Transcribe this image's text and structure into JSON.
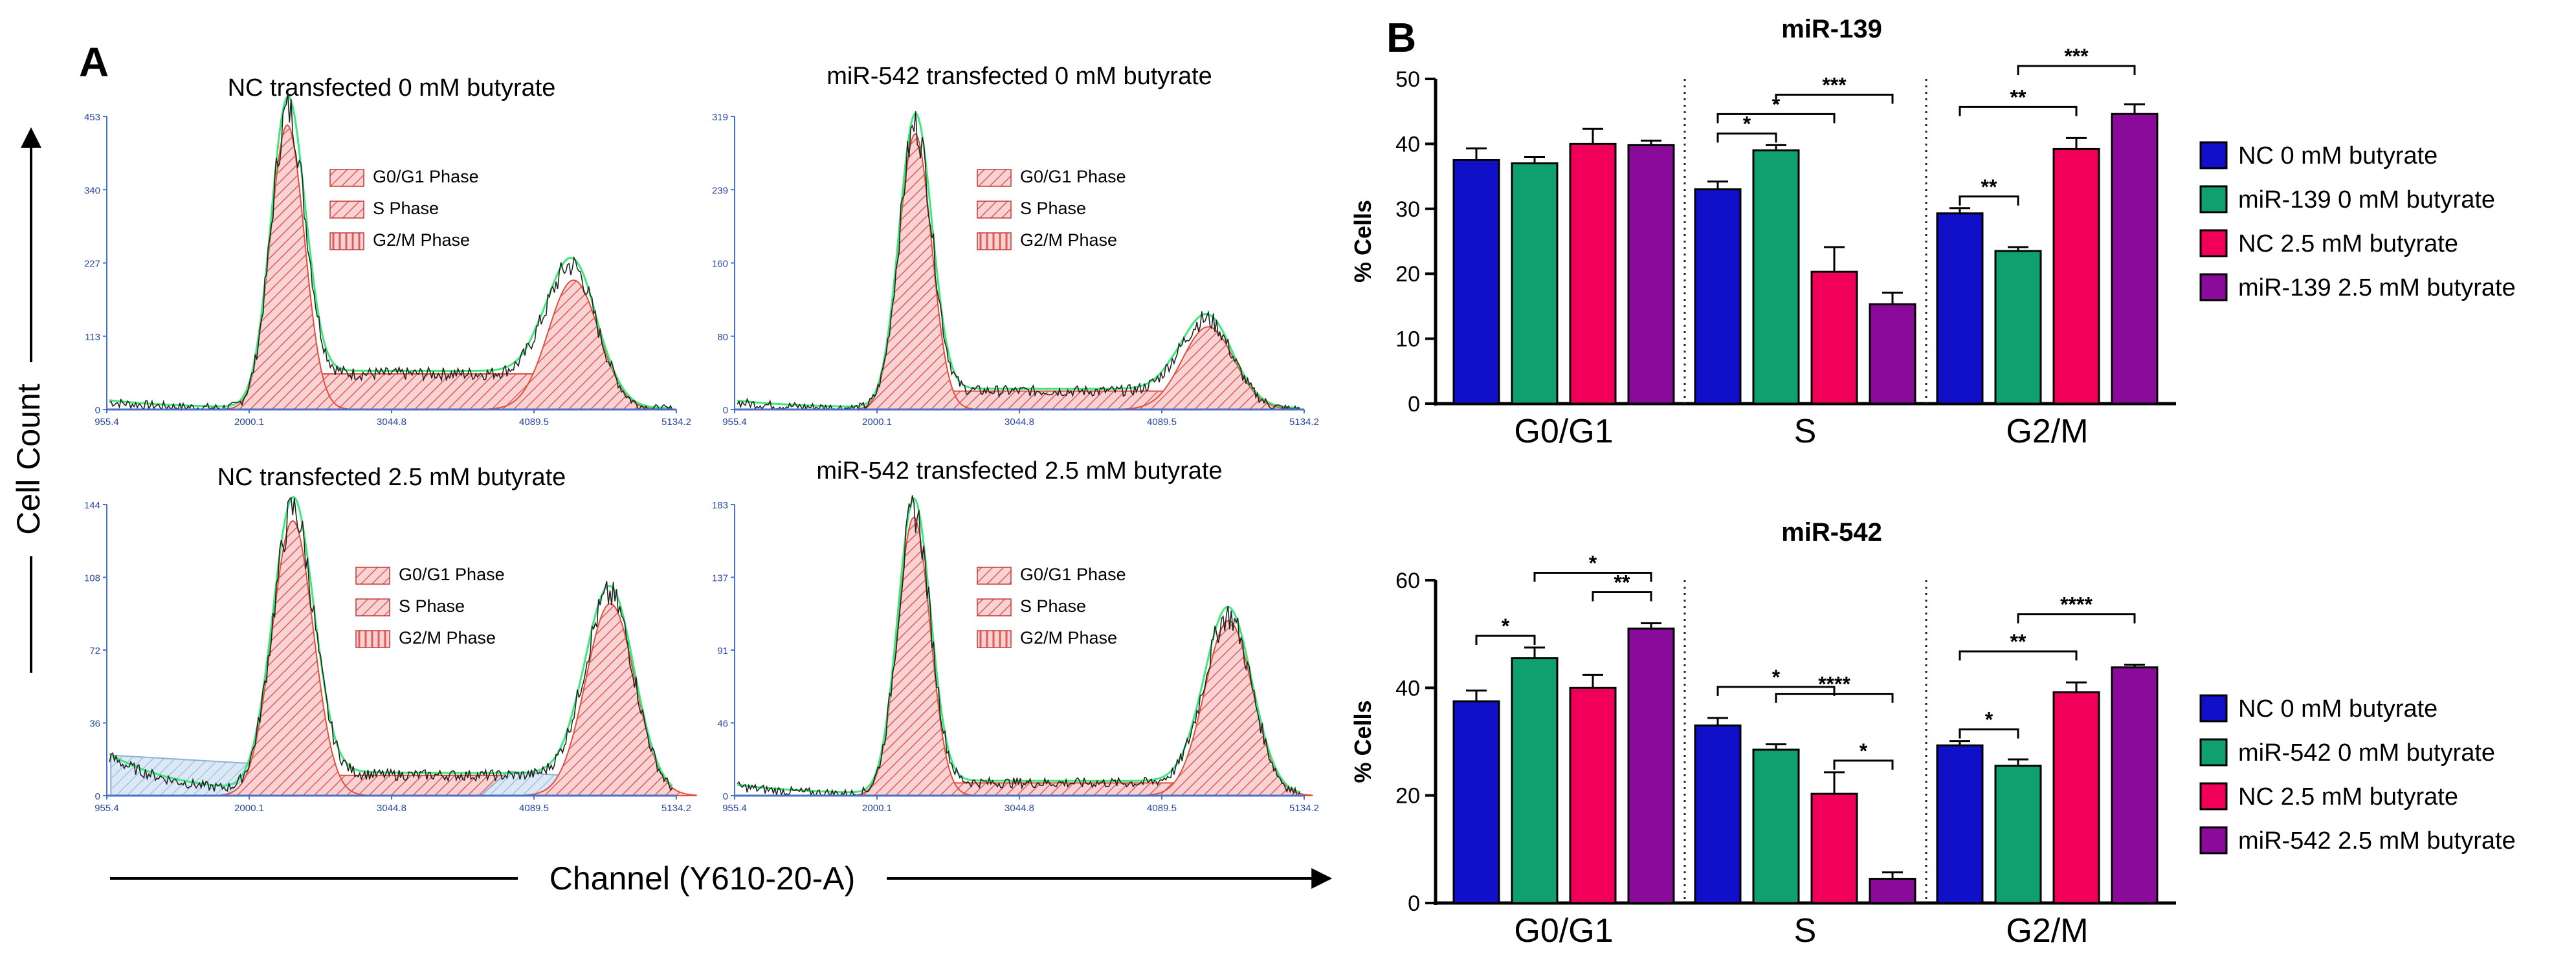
{
  "panel_a": {
    "letter": "A",
    "ylabel": "Cell Count",
    "xlabel": "Channel (Y610-20-A)",
    "x_ticks": [
      "955.4",
      "2000.1",
      "3044.8",
      "4089.5",
      "5134.2"
    ],
    "legend": [
      "G0/G1 Phase",
      "S Phase",
      "G2/M Phase"
    ],
    "histograms": [
      {
        "title": "NC transfected 0 mM butyrate",
        "y_ticks": [
          "0",
          "113",
          "227",
          "340",
          "453"
        ],
        "ymax": 453,
        "g1_mean": 2280,
        "g1_sd": 125,
        "g1_peak": 440,
        "g2_mean": 4380,
        "g2_sd": 185,
        "g2_peak": 200,
        "s_level": 55,
        "debris": 12
      },
      {
        "title": "miR-542 transfected 0 mM butyrate",
        "y_ticks": [
          "0",
          "80",
          "160",
          "239",
          "319"
        ],
        "ymax": 319,
        "g1_mean": 2280,
        "g1_sd": 120,
        "g1_peak": 300,
        "g2_mean": 4430,
        "g2_sd": 190,
        "g2_peak": 90,
        "s_level": 20,
        "debris": 8
      },
      {
        "title": "NC transfected 2.5 mM butyrate",
        "y_ticks": [
          "0",
          "36",
          "72",
          "108",
          "144"
        ],
        "ymax": 144,
        "g1_mean": 2320,
        "g1_sd": 150,
        "g1_peak": 136,
        "g2_mean": 4650,
        "g2_sd": 180,
        "g2_peak": 95,
        "s_level": 10,
        "debris": 20
      },
      {
        "title": "miR-542 transfected 2.5 mM butyrate",
        "y_ticks": [
          "0",
          "46",
          "91",
          "137",
          "183"
        ],
        "ymax": 183,
        "g1_mean": 2270,
        "g1_sd": 120,
        "g1_peak": 175,
        "g2_mean": 4580,
        "g2_sd": 175,
        "g2_peak": 110,
        "s_level": 8,
        "debris": 6
      }
    ]
  },
  "panel_b_letter": "B",
  "colors": {
    "nc0": "#1010c8",
    "mir0": "#10a070",
    "nc25": "#f00058",
    "mir25": "#8a0a9a"
  },
  "chart_data": [
    {
      "type": "bar",
      "title": "miR-139",
      "ylabel": "% Cells",
      "ylim": [
        0,
        50
      ],
      "y_ticks": [
        "0",
        "10",
        "20",
        "30",
        "40",
        "50"
      ],
      "categories": [
        "G0/G1",
        "S",
        "G2/M"
      ],
      "series": [
        {
          "name": "NC 0 mM butyrate",
          "values": [
            37.5,
            33.0,
            29.3
          ],
          "errors": [
            1.8,
            1.2,
            0.8
          ]
        },
        {
          "name": "miR-139 0 mM butyrate",
          "values": [
            37.0,
            39.0,
            23.5
          ],
          "errors": [
            1.0,
            0.8,
            0.6
          ]
        },
        {
          "name": "NC 2.5 mM butyrate",
          "values": [
            40.0,
            20.3,
            39.2
          ],
          "errors": [
            2.3,
            3.8,
            1.7
          ]
        },
        {
          "name": "miR-139 2.5 mM butyrate",
          "values": [
            39.8,
            15.3,
            44.6
          ],
          "errors": [
            0.7,
            1.8,
            1.5
          ]
        }
      ],
      "significance": [
        {
          "group": 1,
          "from": 0,
          "to": 1,
          "level": 1,
          "label": "*"
        },
        {
          "group": 1,
          "from": 0,
          "to": 2,
          "level": 2,
          "label": "*"
        },
        {
          "group": 1,
          "from": 1,
          "to": 3,
          "level": 3,
          "label": "***"
        },
        {
          "group": 2,
          "from": 0,
          "to": 1,
          "level": 1,
          "label": "**"
        },
        {
          "group": 2,
          "from": 0,
          "to": 2,
          "level": 2,
          "label": "**"
        },
        {
          "group": 2,
          "from": 1,
          "to": 3,
          "level": 3,
          "label": "***"
        }
      ]
    },
    {
      "type": "bar",
      "title": "miR-542",
      "ylabel": "% Cells",
      "ylim": [
        0,
        60
      ],
      "y_ticks": [
        "0",
        "20",
        "40",
        "60"
      ],
      "categories": [
        "G0/G1",
        "S",
        "G2/M"
      ],
      "series": [
        {
          "name": "NC 0 mM butyrate",
          "values": [
            37.5,
            33.0,
            29.3
          ],
          "errors": [
            2.0,
            1.4,
            0.8
          ]
        },
        {
          "name": "miR-542 0 mM butyrate",
          "values": [
            45.5,
            28.5,
            25.5
          ],
          "errors": [
            2.0,
            1.0,
            1.2
          ]
        },
        {
          "name": "NC 2.5 mM butyrate",
          "values": [
            40.0,
            20.3,
            39.2
          ],
          "errors": [
            2.4,
            4.0,
            1.8
          ]
        },
        {
          "name": "miR-542 2.5 mM butyrate",
          "values": [
            51.0,
            4.5,
            43.8
          ],
          "errors": [
            1.0,
            1.2,
            0.5
          ]
        }
      ],
      "significance": [
        {
          "group": 0,
          "from": 0,
          "to": 1,
          "level": 1,
          "label": "*"
        },
        {
          "group": 0,
          "from": 1,
          "to": 3,
          "level": 3,
          "label": "*"
        },
        {
          "group": 0,
          "from": 2,
          "to": 3,
          "level": 2,
          "label": "**"
        },
        {
          "group": 1,
          "from": 0,
          "to": 2,
          "level": 2,
          "label": "*"
        },
        {
          "group": 1,
          "from": 1,
          "to": 3,
          "level": 3,
          "label": "****"
        },
        {
          "group": 1,
          "from": 2,
          "to": 3,
          "level": 1,
          "label": "*"
        },
        {
          "group": 2,
          "from": 0,
          "to": 1,
          "level": 1,
          "label": "*"
        },
        {
          "group": 2,
          "from": 0,
          "to": 2,
          "level": 2,
          "label": "**"
        },
        {
          "group": 2,
          "from": 1,
          "to": 3,
          "level": 3,
          "label": "****"
        }
      ]
    }
  ]
}
